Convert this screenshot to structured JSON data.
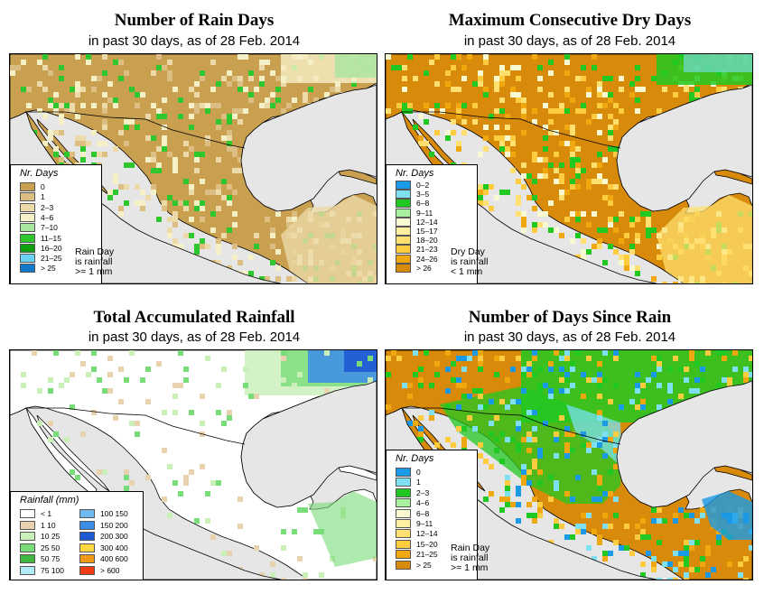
{
  "panels": {
    "rain_days": {
      "title": "Number of Rain Days",
      "subtitle": "in past 30 days, as of  28 Feb. 2014",
      "legend_title": "Nr. Days",
      "legend": [
        {
          "label": "0",
          "color": "#c8a050"
        },
        {
          "label": "1",
          "color": "#dcbe82"
        },
        {
          "label": "2–3",
          "color": "#ecdaa8"
        },
        {
          "label": "4–6",
          "color": "#f6f0c6"
        },
        {
          "label": "7–10",
          "color": "#a8e6a0"
        },
        {
          "label": "11–15",
          "color": "#2ec82e"
        },
        {
          "label": "16–20",
          "color": "#10a010"
        },
        {
          "label": "21–25",
          "color": "#6ad2f2"
        },
        {
          "label": "> 25",
          "color": "#1478c8"
        }
      ],
      "note": [
        "Rain Day",
        "is rainfall",
        ">= 1 mm"
      ]
    },
    "dry_days": {
      "title": "Maximum Consecutive Dry Days",
      "subtitle": "in past 30 days, as of  28 Feb. 2014",
      "legend_title": "Nr. Days",
      "legend": [
        {
          "label": "0–2",
          "color": "#1a9ae6"
        },
        {
          "label": "3–5",
          "color": "#7ee0f0"
        },
        {
          "label": "6–8",
          "color": "#22c822"
        },
        {
          "label": "9–11",
          "color": "#a8f0a0"
        },
        {
          "label": "12–14",
          "color": "#fafad2"
        },
        {
          "label": "15–17",
          "color": "#fff0a0"
        },
        {
          "label": "18–20",
          "color": "#ffe070"
        },
        {
          "label": "21–23",
          "color": "#ffcc40"
        },
        {
          "label": "24–26",
          "color": "#f0a810"
        },
        {
          "label": "> 26",
          "color": "#d88a0a"
        }
      ],
      "note": [
        "Dry Day",
        "is rainfall",
        "< 1 mm"
      ]
    },
    "total_rain": {
      "title": "Total Accumulated Rainfall",
      "subtitle": "in past 30 days, as of  28 Feb. 2014",
      "legend_title": "Rainfall (mm)",
      "legend_left": [
        {
          "label": "< 1",
          "color": "#ffffff"
        },
        {
          "label": "1   10",
          "color": "#e8d2b0"
        },
        {
          "label": "10   25",
          "color": "#c8f0b8"
        },
        {
          "label": "25   50",
          "color": "#78dc78"
        },
        {
          "label": "50   75",
          "color": "#40b840"
        },
        {
          "label": "75   100",
          "color": "#b0ecf8"
        }
      ],
      "legend_right": [
        {
          "label": "100   150",
          "color": "#70b8f0"
        },
        {
          "label": "150   200",
          "color": "#3c8ce8"
        },
        {
          "label": "200   300",
          "color": "#1e5ad2"
        },
        {
          "label": "300   400",
          "color": "#ffd840"
        },
        {
          "label": "400   600",
          "color": "#f09818"
        },
        {
          "label": "> 600",
          "color": "#f03c14"
        }
      ]
    },
    "since_rain": {
      "title": "Number of Days Since Rain",
      "subtitle": "in past 30 days, as of  28 Feb. 2014",
      "legend_title": "Nr. Days",
      "legend": [
        {
          "label": "0",
          "color": "#1a9ae6"
        },
        {
          "label": "1",
          "color": "#7ee0f0"
        },
        {
          "label": "2–3",
          "color": "#22c822"
        },
        {
          "label": "4–6",
          "color": "#a8f0a0"
        },
        {
          "label": "6–8",
          "color": "#fafad2"
        },
        {
          "label": "9–11",
          "color": "#fff0a0"
        },
        {
          "label": "12–14",
          "color": "#ffe070"
        },
        {
          "label": "15–20",
          "color": "#ffcc40"
        },
        {
          "label": "21–25",
          "color": "#f0a810"
        },
        {
          "label": "> 25",
          "color": "#d88a0a"
        }
      ],
      "note": [
        "Rain Day",
        "is rainfall",
        ">= 1 mm"
      ]
    }
  }
}
